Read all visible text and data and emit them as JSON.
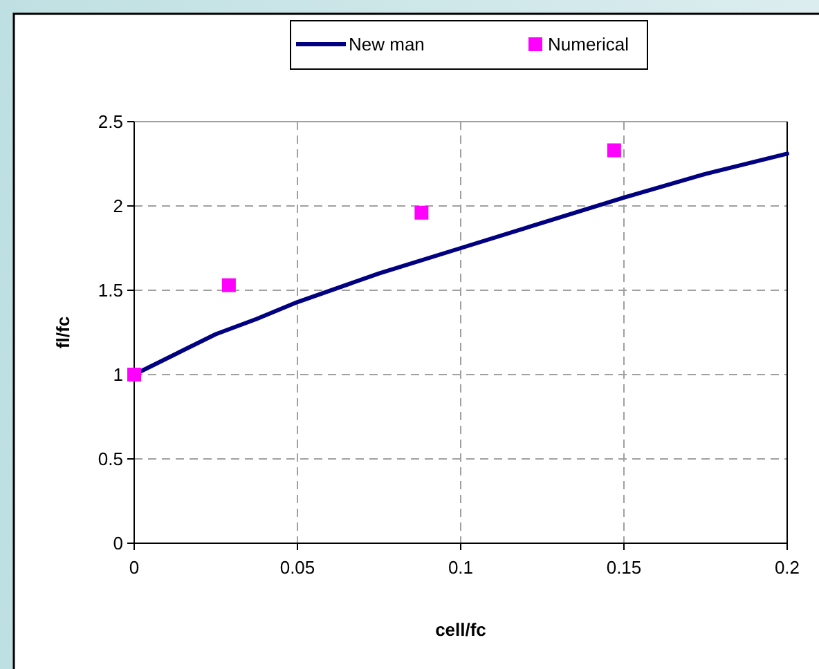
{
  "chart_data": {
    "type": "line",
    "xlabel": "cell/fc",
    "ylabel": "fl/fc",
    "xlim": [
      0,
      0.2
    ],
    "ylim": [
      0,
      2.5
    ],
    "xticks": [
      0,
      0.05,
      0.1,
      0.15,
      0.2
    ],
    "yticks": [
      0,
      0.5,
      1,
      1.5,
      2,
      2.5
    ],
    "grid": true,
    "legend": "top",
    "series": [
      {
        "name": "New man",
        "color": "#000080",
        "marker": "none",
        "x": [
          0,
          0.0125,
          0.025,
          0.0375,
          0.05,
          0.075,
          0.1,
          0.125,
          0.15,
          0.175,
          0.2
        ],
        "values": [
          1,
          1.12,
          1.24,
          1.33,
          1.43,
          1.6,
          1.75,
          1.9,
          2.05,
          2.19,
          2.31
        ]
      },
      {
        "name": "Numerical",
        "type": "scatter",
        "color": "#ff00ff",
        "marker": "square",
        "x": [
          0,
          0.029,
          0.088,
          0.147
        ],
        "values": [
          1,
          1.53,
          1.96,
          2.33
        ]
      }
    ]
  }
}
